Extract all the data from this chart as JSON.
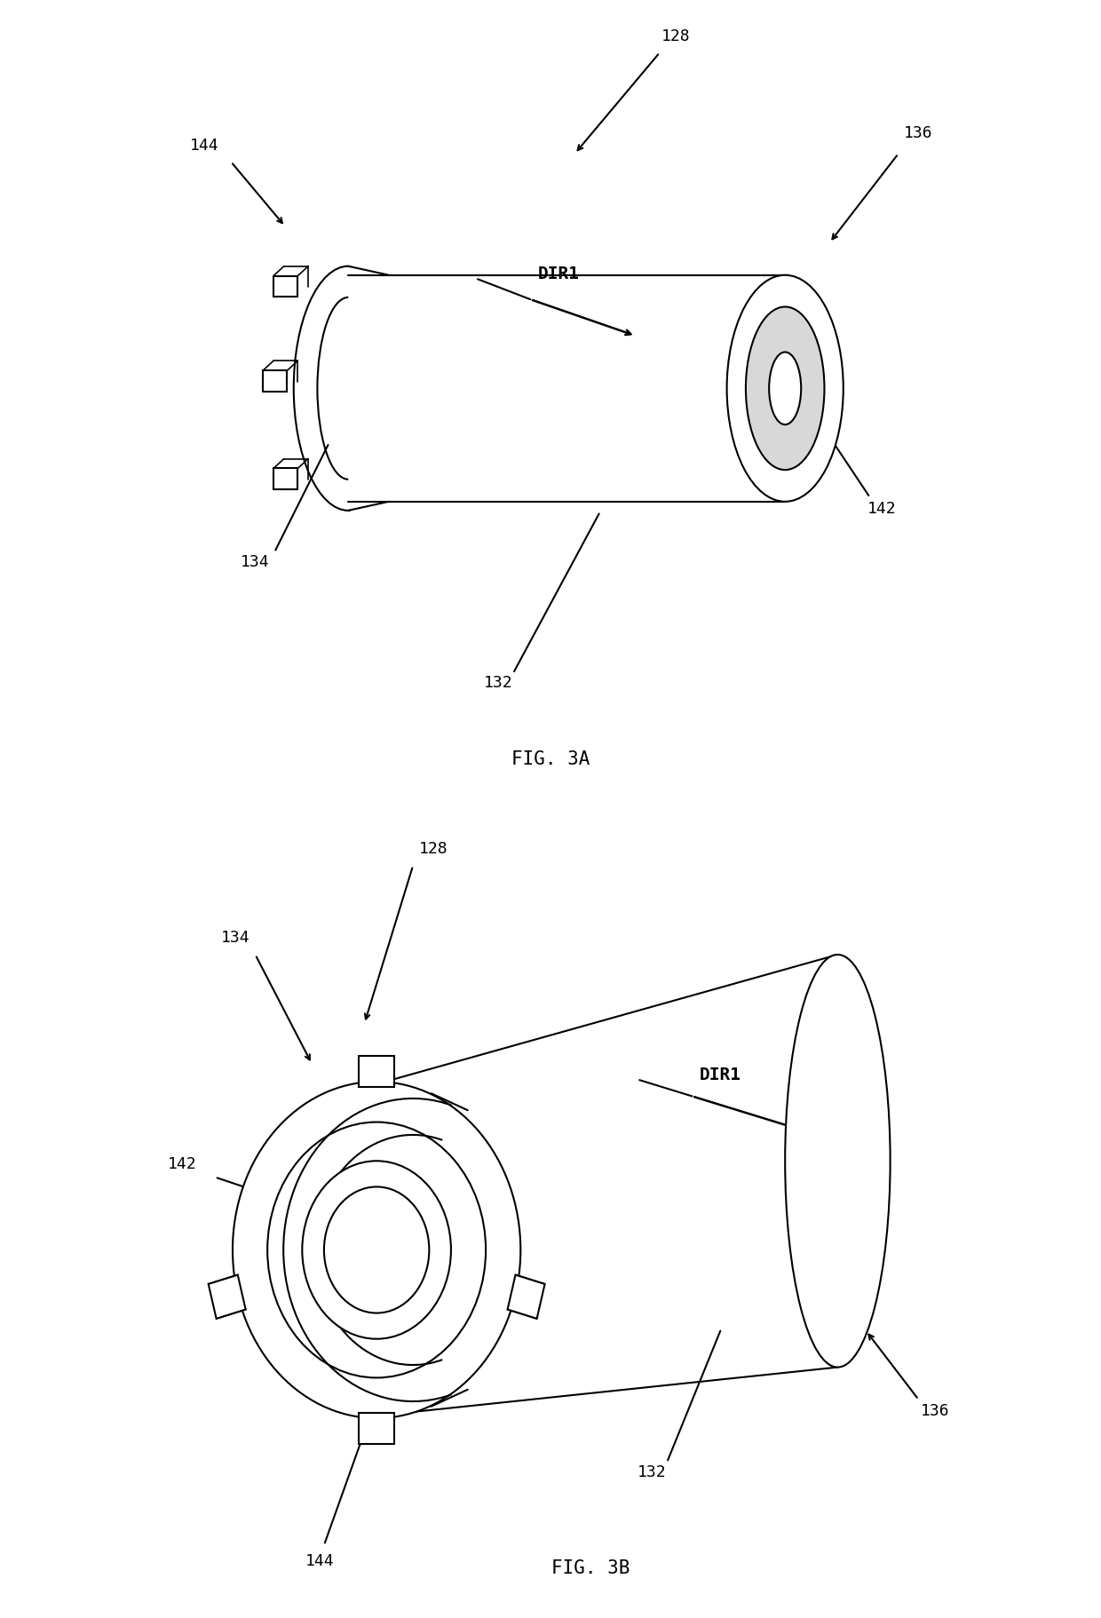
{
  "fig_width": 12.4,
  "fig_height": 18.22,
  "bg_color": "#ffffff",
  "line_color": "#000000",
  "line_width": 1.5,
  "fig3a_label": "FIG. 3A",
  "fig3b_label": "FIG. 3B"
}
